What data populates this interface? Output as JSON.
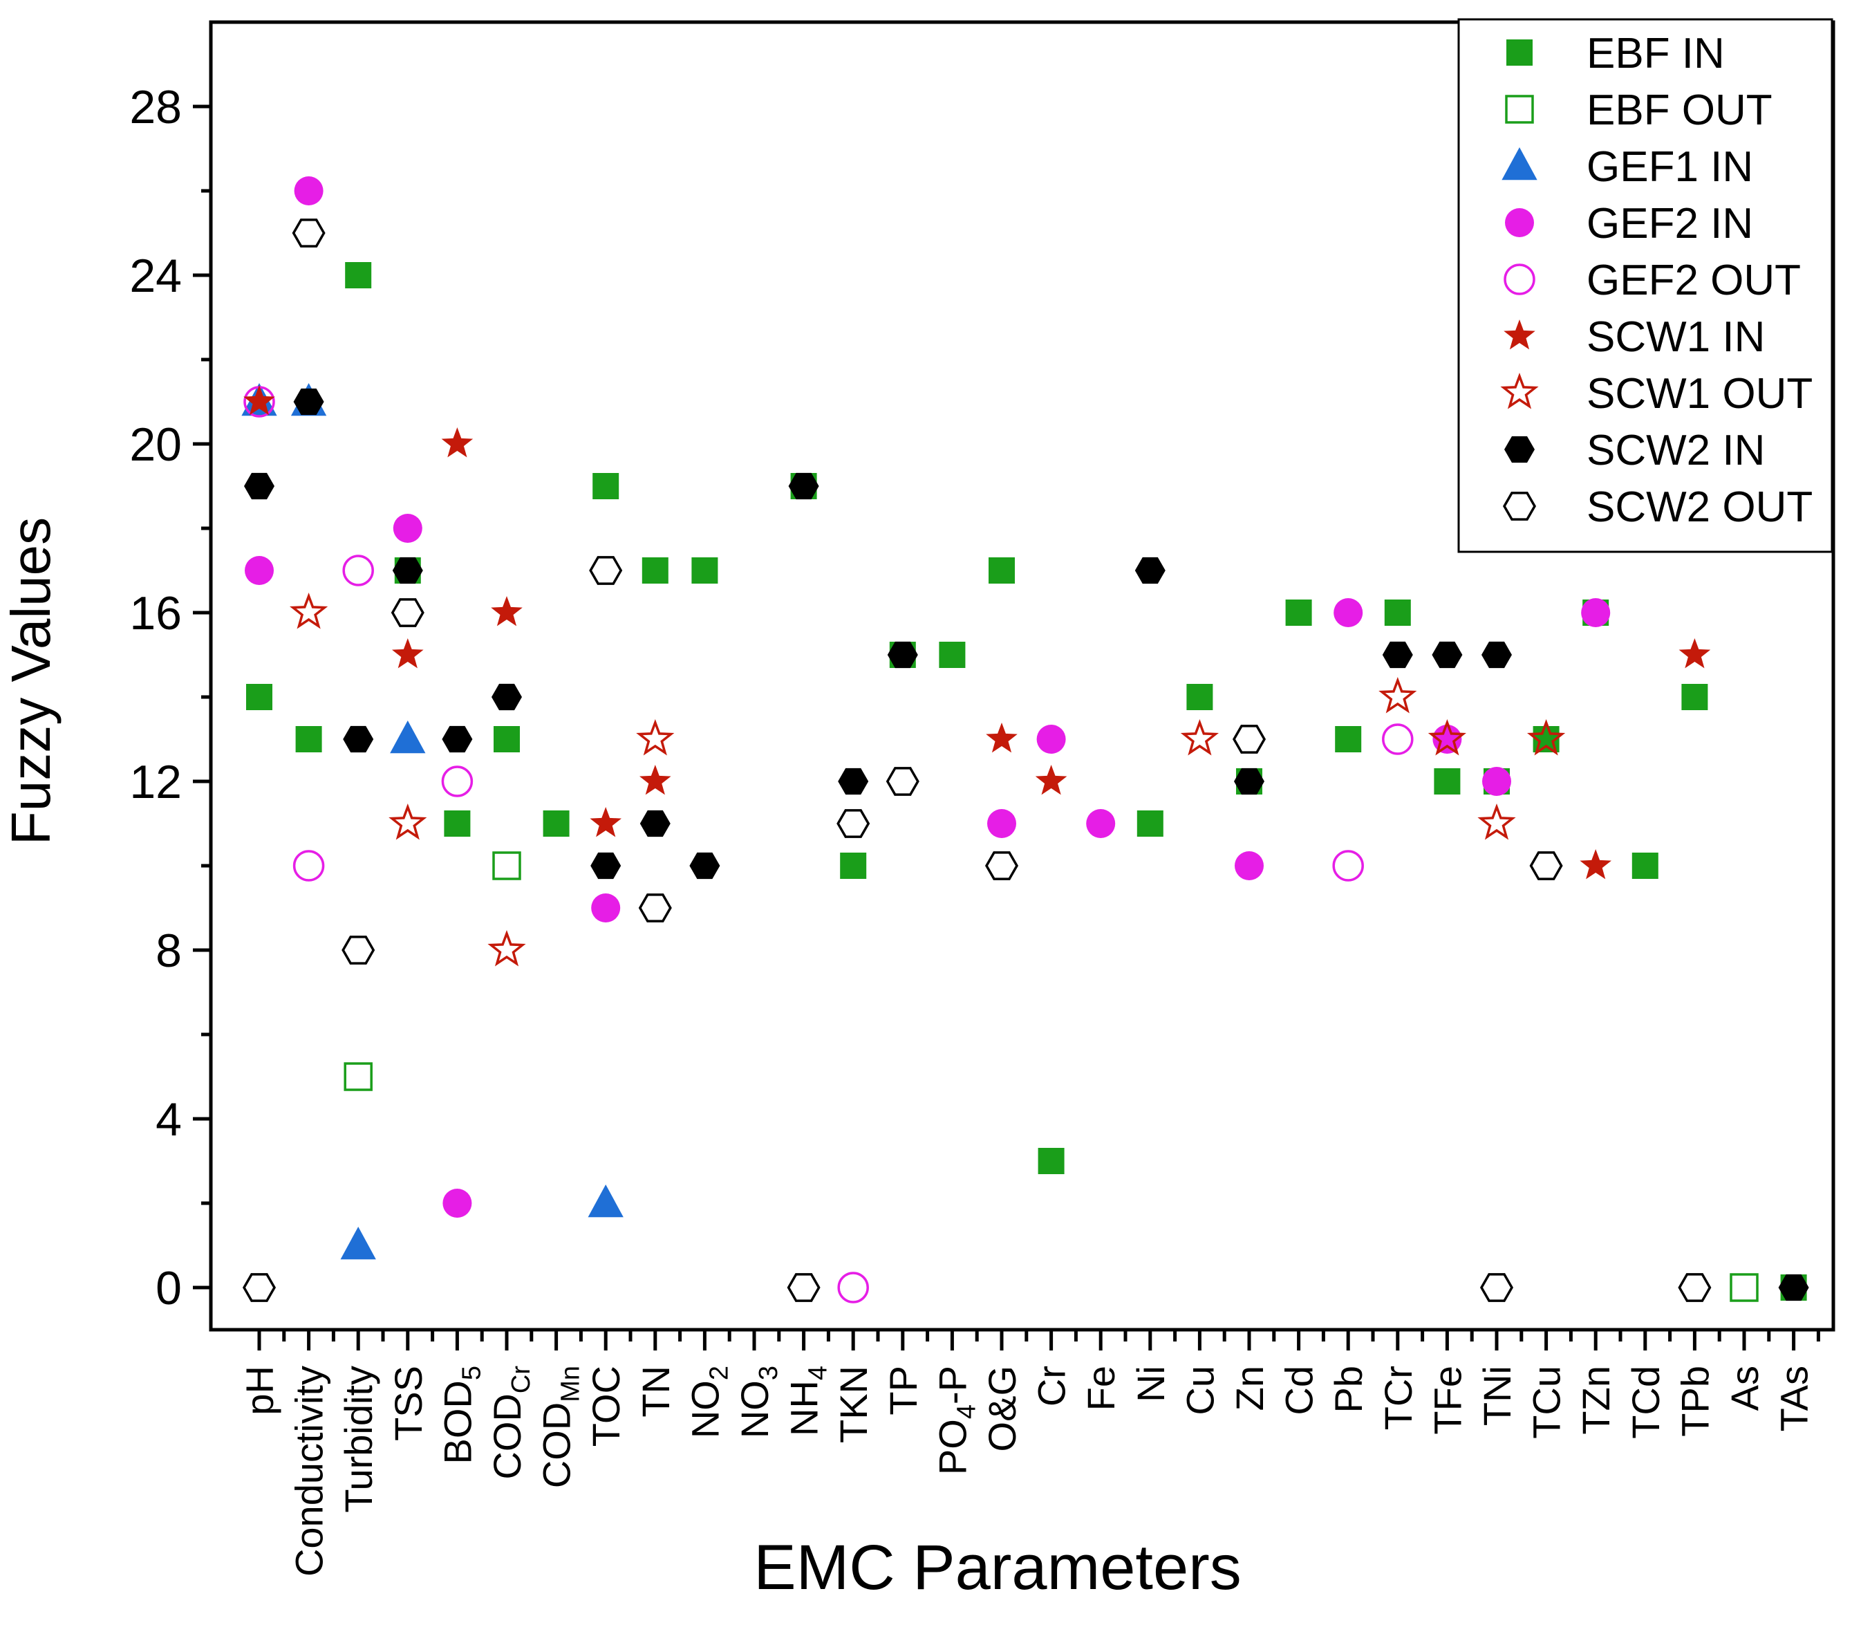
{
  "chart_data": {
    "type": "scatter",
    "title": "",
    "xlabel": "EMC Parameters",
    "ylabel": "Fuzzy Values",
    "ylim": [
      -1,
      30
    ],
    "yticks": [
      0,
      4,
      8,
      12,
      16,
      20,
      24,
      28
    ],
    "grid": false,
    "legend_position": "top-right",
    "categories": [
      {
        "main": "pH",
        "sub": ""
      },
      {
        "main": "Conductivity",
        "sub": ""
      },
      {
        "main": "Turbidity",
        "sub": ""
      },
      {
        "main": "TSS",
        "sub": ""
      },
      {
        "main": "BOD",
        "sub": "5"
      },
      {
        "main": "COD",
        "sub": "Cr"
      },
      {
        "main": "COD",
        "sub": "Mn"
      },
      {
        "main": "TOC",
        "sub": ""
      },
      {
        "main": "TN",
        "sub": ""
      },
      {
        "main": "NO",
        "sub": "2"
      },
      {
        "main": "NO",
        "sub": "3"
      },
      {
        "main": "NH",
        "sub": "4"
      },
      {
        "main": "TKN",
        "sub": ""
      },
      {
        "main": "TP",
        "sub": ""
      },
      {
        "main": "PO",
        "sub": "4",
        "post": "-P"
      },
      {
        "main": "O&G",
        "sub": ""
      },
      {
        "main": "Cr",
        "sub": ""
      },
      {
        "main": "Fe",
        "sub": ""
      },
      {
        "main": "Ni",
        "sub": ""
      },
      {
        "main": "Cu",
        "sub": ""
      },
      {
        "main": "Zn",
        "sub": ""
      },
      {
        "main": "Cd",
        "sub": ""
      },
      {
        "main": "Pb",
        "sub": ""
      },
      {
        "main": "TCr",
        "sub": ""
      },
      {
        "main": "TFe",
        "sub": ""
      },
      {
        "main": "TNi",
        "sub": ""
      },
      {
        "main": "TCu",
        "sub": ""
      },
      {
        "main": "TZn",
        "sub": ""
      },
      {
        "main": "TCd",
        "sub": ""
      },
      {
        "main": "TPb",
        "sub": ""
      },
      {
        "main": "As",
        "sub": ""
      },
      {
        "main": "TAs",
        "sub": ""
      }
    ],
    "series": [
      {
        "name": "EBF IN",
        "marker": "square",
        "filled": true,
        "color": "#1a9e1a",
        "values": [
          14,
          13,
          24,
          17,
          11,
          13,
          11,
          19,
          17,
          17,
          null,
          19,
          10,
          15,
          15,
          17,
          3,
          null,
          11,
          14,
          12,
          16,
          13,
          16,
          12,
          12,
          13,
          16,
          10,
          14,
          null,
          0
        ]
      },
      {
        "name": "EBF OUT",
        "marker": "square",
        "filled": false,
        "color": "#1a9e1a",
        "values": [
          null,
          null,
          5,
          null,
          null,
          10,
          null,
          null,
          null,
          null,
          null,
          null,
          null,
          null,
          null,
          null,
          null,
          null,
          null,
          null,
          null,
          null,
          null,
          null,
          null,
          null,
          null,
          null,
          null,
          null,
          0,
          null
        ]
      },
      {
        "name": "GEF1 IN",
        "marker": "triangle",
        "filled": true,
        "color": "#1f6fd6",
        "values": [
          21,
          21,
          1,
          13,
          null,
          null,
          null,
          2,
          null,
          null,
          null,
          null,
          null,
          null,
          null,
          null,
          null,
          null,
          null,
          null,
          null,
          null,
          null,
          null,
          null,
          null,
          null,
          null,
          null,
          null,
          null,
          null
        ]
      },
      {
        "name": "GEF2 IN",
        "marker": "circle",
        "filled": true,
        "color": "#e61ee6",
        "values": [
          17,
          26,
          null,
          18,
          2,
          null,
          null,
          9,
          null,
          null,
          null,
          null,
          null,
          null,
          null,
          11,
          13,
          11,
          null,
          null,
          10,
          null,
          16,
          null,
          13,
          12,
          null,
          16,
          null,
          null,
          null,
          null
        ]
      },
      {
        "name": "GEF2 OUT",
        "marker": "circle",
        "filled": false,
        "color": "#e61ee6",
        "values": [
          21,
          10,
          17,
          null,
          12,
          null,
          null,
          null,
          null,
          null,
          null,
          null,
          0,
          null,
          null,
          null,
          null,
          null,
          null,
          null,
          null,
          null,
          10,
          13,
          null,
          null,
          null,
          null,
          null,
          null,
          null,
          null
        ]
      },
      {
        "name": "SCW1 IN",
        "marker": "star",
        "filled": true,
        "color": "#c41a0a",
        "values": [
          21,
          null,
          null,
          15,
          20,
          16,
          null,
          11,
          12,
          null,
          null,
          null,
          null,
          null,
          null,
          13,
          12,
          null,
          null,
          null,
          null,
          null,
          null,
          null,
          null,
          null,
          null,
          10,
          null,
          15,
          null,
          null
        ]
      },
      {
        "name": "SCW1 OUT",
        "marker": "star",
        "filled": false,
        "color": "#c41a0a",
        "values": [
          null,
          16,
          null,
          11,
          null,
          8,
          null,
          null,
          13,
          null,
          null,
          null,
          null,
          null,
          null,
          null,
          null,
          null,
          null,
          13,
          null,
          null,
          null,
          14,
          13,
          11,
          13,
          null,
          null,
          null,
          null,
          null
        ]
      },
      {
        "name": "SCW2 IN",
        "marker": "hexagon",
        "filled": true,
        "color": "#000000",
        "values": [
          19,
          21,
          13,
          17,
          13,
          14,
          null,
          10,
          11,
          10,
          null,
          19,
          12,
          15,
          null,
          null,
          null,
          null,
          17,
          null,
          12,
          null,
          null,
          15,
          15,
          15,
          null,
          null,
          null,
          null,
          null,
          0
        ]
      },
      {
        "name": "SCW2 OUT",
        "marker": "hexagon",
        "filled": false,
        "color": "#000000",
        "values": [
          0,
          25,
          8,
          16,
          null,
          null,
          null,
          17,
          9,
          null,
          null,
          0,
          11,
          12,
          null,
          10,
          null,
          null,
          null,
          null,
          13,
          null,
          null,
          null,
          null,
          0,
          10,
          null,
          null,
          0,
          null,
          null
        ]
      }
    ]
  }
}
